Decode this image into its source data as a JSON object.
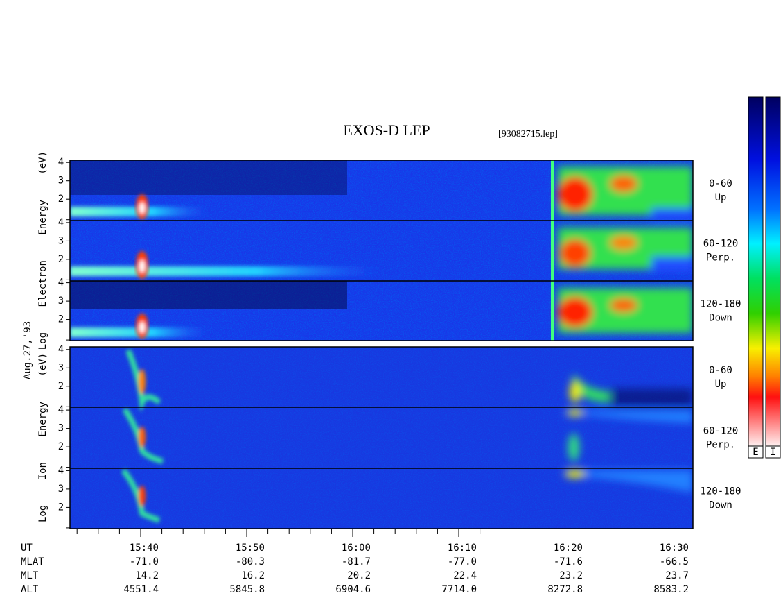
{
  "header": {
    "title": "EXOS-D LEP",
    "file": "[93082715.lep]"
  },
  "date": "Aug.27,'93",
  "panels": [
    {
      "axis_label": "Log Electron Energy (eV)",
      "yticks": [
        "2",
        "3",
        "4"
      ],
      "sub": [
        {
          "range": "0-60",
          "dir": "Up"
        },
        {
          "range": "60-120",
          "dir": "Perp."
        },
        {
          "range": "120-180",
          "dir": "Down"
        }
      ]
    },
    {
      "axis_label": "Log Ion Energy (eV)",
      "yticks": [
        "2",
        "3",
        "4"
      ],
      "sub": [
        {
          "range": "0-60",
          "dir": "Up"
        },
        {
          "range": "60-120",
          "dir": "Perp."
        },
        {
          "range": "120-180",
          "dir": "Down"
        }
      ]
    }
  ],
  "colorbars": [
    "E",
    "I"
  ],
  "table": {
    "rows": [
      {
        "label": "UT",
        "values": [
          "15:40",
          "15:50",
          "16:00",
          "16:10",
          "16:20",
          "16:30"
        ]
      },
      {
        "label": "MLAT",
        "values": [
          "-71.0",
          "-80.3",
          "-81.7",
          "-77.0",
          "-71.6",
          "-66.5"
        ]
      },
      {
        "label": "MLT",
        "values": [
          "14.2",
          "16.2",
          "20.2",
          "22.4",
          "23.2",
          "23.7"
        ]
      },
      {
        "label": "ALT",
        "values": [
          "4551.4",
          "5845.8",
          "6904.6",
          "7714.0",
          "8272.8",
          "8583.2"
        ]
      }
    ]
  }
}
